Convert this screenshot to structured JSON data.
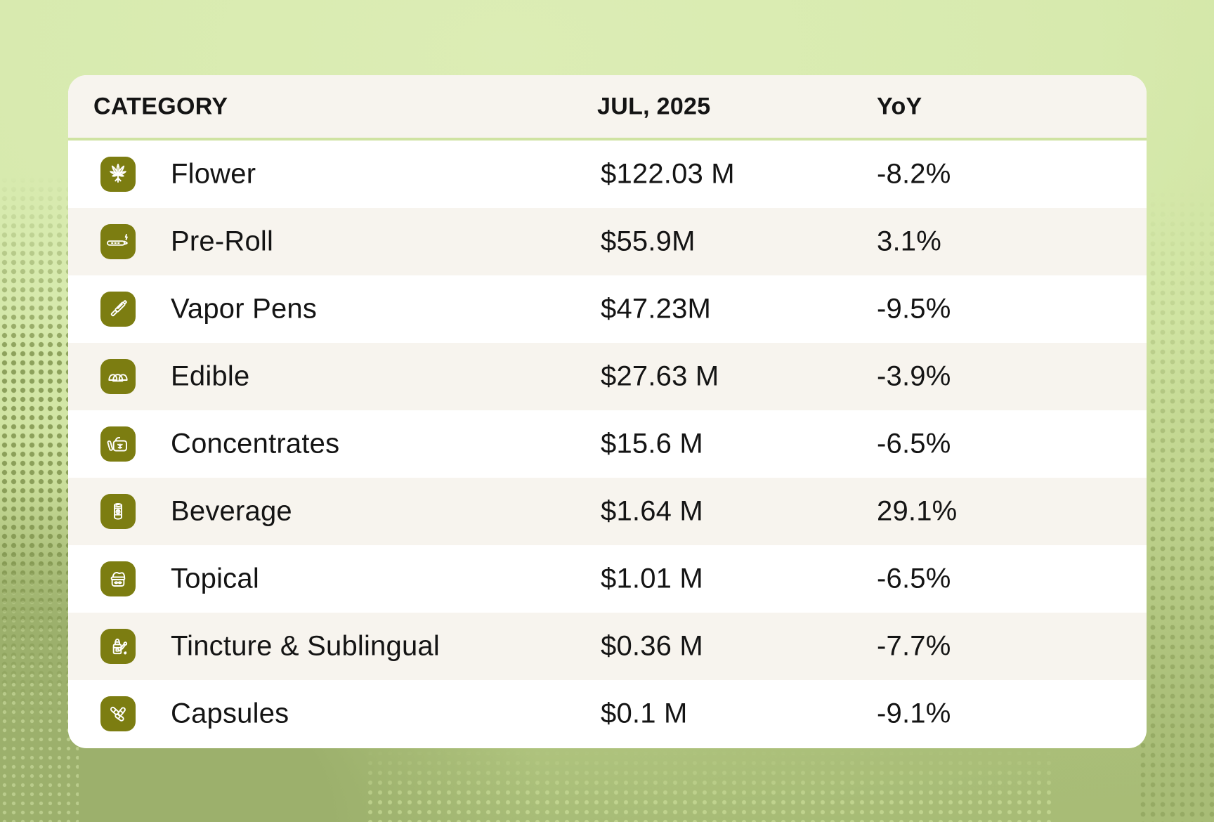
{
  "table": {
    "columns": [
      "CATEGORY",
      "JUL, 2025",
      "YoY"
    ],
    "rows": [
      {
        "icon": "flower-icon",
        "category": "Flower",
        "value": "$122.03 M",
        "yoy": "-8.2%"
      },
      {
        "icon": "preroll-icon",
        "category": "Pre-Roll",
        "value": "$55.9M",
        "yoy": "3.1%"
      },
      {
        "icon": "vapor-pen-icon",
        "category": "Vapor Pens",
        "value": "$47.23M",
        "yoy": "-9.5%"
      },
      {
        "icon": "edible-icon",
        "category": "Edible",
        "value": "$27.63 M",
        "yoy": "-3.9%"
      },
      {
        "icon": "concentrates-icon",
        "category": "Concentrates",
        "value": "$15.6 M",
        "yoy": "-6.5%"
      },
      {
        "icon": "beverage-icon",
        "category": "Beverage",
        "value": "$1.64 M",
        "yoy": "29.1%"
      },
      {
        "icon": "topical-icon",
        "category": "Topical",
        "value": "$1.01 M",
        "yoy": "-6.5%"
      },
      {
        "icon": "tincture-icon",
        "category": "Tincture & Sublingual",
        "value": "$0.36 M",
        "yoy": "-7.7%"
      },
      {
        "icon": "capsules-icon",
        "category": "Capsules",
        "value": "$0.1 M",
        "yoy": "-9.1%"
      }
    ]
  },
  "chart_data": {
    "type": "table",
    "title": "",
    "columns": [
      "CATEGORY",
      "JUL, 2025",
      "YoY"
    ],
    "categories": [
      "Flower",
      "Pre-Roll",
      "Vapor Pens",
      "Edible",
      "Concentrates",
      "Beverage",
      "Topical",
      "Tincture & Sublingual",
      "Capsules"
    ],
    "series": [
      {
        "name": "JUL, 2025 sales ($M)",
        "values": [
          122.03,
          55.9,
          47.23,
          27.63,
          15.6,
          1.64,
          1.01,
          0.36,
          0.1
        ]
      },
      {
        "name": "YoY (%)",
        "values": [
          -8.2,
          3.1,
          -9.5,
          -3.9,
          -6.5,
          29.1,
          -6.5,
          -7.7,
          -9.1
        ]
      }
    ],
    "legend_position": "none",
    "grid": false
  },
  "colors": {
    "accent_olive": "#7c7d11",
    "card_bg": "#ffffff",
    "row_alt_bg": "#f7f4ee",
    "header_bg": "#f7f4ee",
    "header_separator_green": "#cfe3a2",
    "text": "#141414",
    "bg_light_green": "#dcedb5",
    "bg_dark_green": "#9cb06c"
  }
}
